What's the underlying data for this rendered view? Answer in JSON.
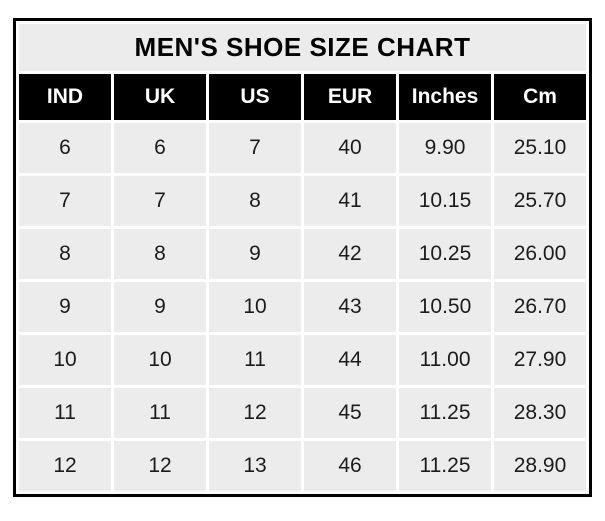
{
  "table": {
    "title": "MEN'S SHOE SIZE CHART",
    "columns": [
      "IND",
      "UK",
      "US",
      "EUR",
      "Inches",
      "Cm"
    ],
    "rows": [
      [
        "6",
        "6",
        "7",
        "40",
        "9.90",
        "25.10"
      ],
      [
        "7",
        "7",
        "8",
        "41",
        "10.15",
        "25.70"
      ],
      [
        "8",
        "8",
        "9",
        "42",
        "10.25",
        "26.00"
      ],
      [
        "9",
        "9",
        "10",
        "43",
        "10.50",
        "26.70"
      ],
      [
        "10",
        "10",
        "11",
        "44",
        "11.00",
        "27.90"
      ],
      [
        "11",
        "11",
        "12",
        "45",
        "11.25",
        "28.30"
      ],
      [
        "12",
        "12",
        "13",
        "46",
        "11.25",
        "28.90"
      ]
    ],
    "colors": {
      "border": "#000000",
      "separator": "#ffffff",
      "title_bg": "#ececec",
      "title_text": "#000000",
      "header_bg": "#000000",
      "header_text": "#ffffff",
      "cell_bg": "#edecec",
      "cell_text": "#1c1c1c"
    }
  },
  "chart_data": {
    "type": "table",
    "title": "MEN'S SHOE SIZE CHART",
    "columns": [
      "IND",
      "UK",
      "US",
      "EUR",
      "Inches",
      "Cm"
    ],
    "rows": [
      [
        6,
        6,
        7,
        40,
        9.9,
        25.1
      ],
      [
        7,
        7,
        8,
        41,
        10.15,
        25.7
      ],
      [
        8,
        8,
        9,
        42,
        10.25,
        26.0
      ],
      [
        9,
        9,
        10,
        43,
        10.5,
        26.7
      ],
      [
        10,
        10,
        11,
        44,
        11.0,
        27.9
      ],
      [
        11,
        11,
        12,
        45,
        11.25,
        28.3
      ],
      [
        12,
        12,
        13,
        46,
        11.25,
        28.9
      ]
    ]
  }
}
